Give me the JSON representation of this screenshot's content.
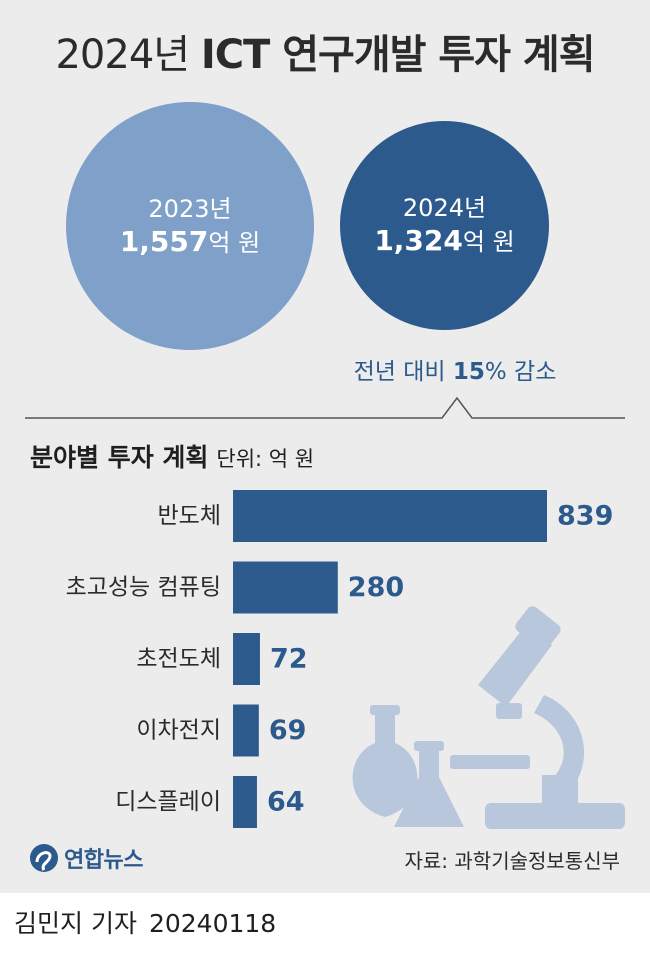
{
  "title": {
    "year": "2024년",
    "rest": "ICT 연구개발 투자 계획"
  },
  "summary": {
    "prev": {
      "year": "2023년",
      "amount": "1,557",
      "unit": "억 원"
    },
    "curr": {
      "year": "2024년",
      "amount": "1,324",
      "unit": "억 원"
    },
    "change": {
      "prefix": "전년 대비 ",
      "pct": "15",
      "suffix": "% 감소"
    }
  },
  "section": {
    "title": "분야별 투자 계획",
    "unit": "단위: 억 원"
  },
  "chart_data": {
    "type": "bar",
    "orientation": "horizontal",
    "categories": [
      "반도체",
      "초고성능 컴퓨팅",
      "초전도체",
      "이차전지",
      "디스플레이"
    ],
    "values": [
      839,
      280,
      72,
      69,
      64
    ],
    "value_labels": [
      "839",
      "280",
      "72",
      "69",
      "64"
    ],
    "title": "분야별 투자 계획",
    "unit": "단위: 억 원",
    "xlim": [
      0,
      839
    ],
    "grid": false,
    "bar_color": "#2d5a8c"
  },
  "colors": {
    "background": "#ececec",
    "bar": "#2d5a8c",
    "circle_2023": "#7fa0c8",
    "circle_2024": "#2d5a8c",
    "illustration": "#b9c7dc"
  },
  "illustration": {
    "icons": [
      "microscope-icon",
      "round-flask-icon",
      "conical-flask-icon"
    ]
  },
  "footer": {
    "logo": "연합뉴스",
    "source": "자료: 과학기술정보통신부",
    "reporter": "김민지 기자",
    "date": "20240118"
  }
}
